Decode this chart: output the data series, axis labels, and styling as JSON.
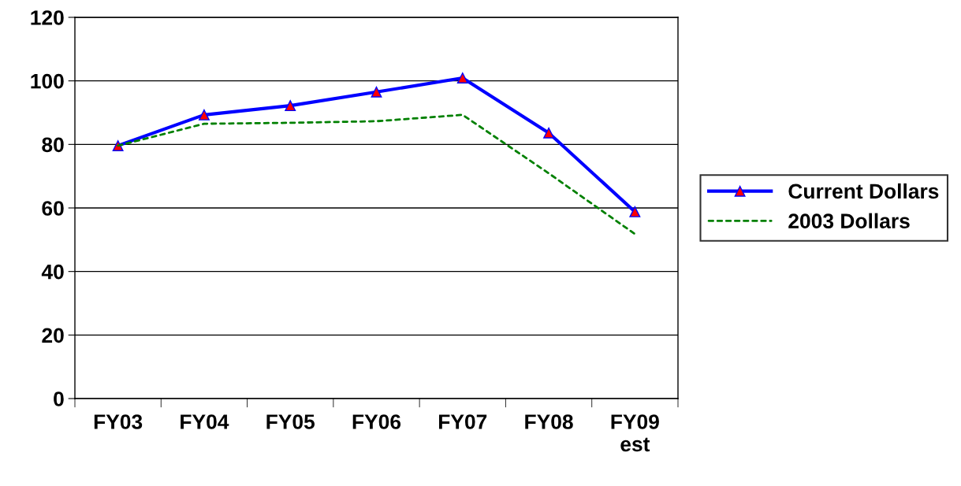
{
  "chart_data": {
    "type": "line",
    "categories": [
      "FY03",
      "FY04",
      "FY05",
      "FY06",
      "FY07",
      "FY08",
      "FY09\nest"
    ],
    "series": [
      {
        "name": "Current Dollars",
        "color": "#0000ff",
        "values": [
          79.6,
          89.3,
          92.2,
          96.5,
          100.9,
          83.6,
          58.8
        ],
        "marker": "triangle",
        "line_style": "solid"
      },
      {
        "name": "2003 Dollars",
        "color": "#008000",
        "values": [
          79.6,
          86.5,
          86.8,
          87.3,
          89.3,
          70.9,
          51.8
        ],
        "marker": "none",
        "line_style": "dotted"
      }
    ],
    "ylim": [
      0,
      120
    ],
    "yticks": [
      0,
      20,
      40,
      60,
      80,
      100,
      120
    ],
    "grid": "y",
    "legend": "right"
  }
}
